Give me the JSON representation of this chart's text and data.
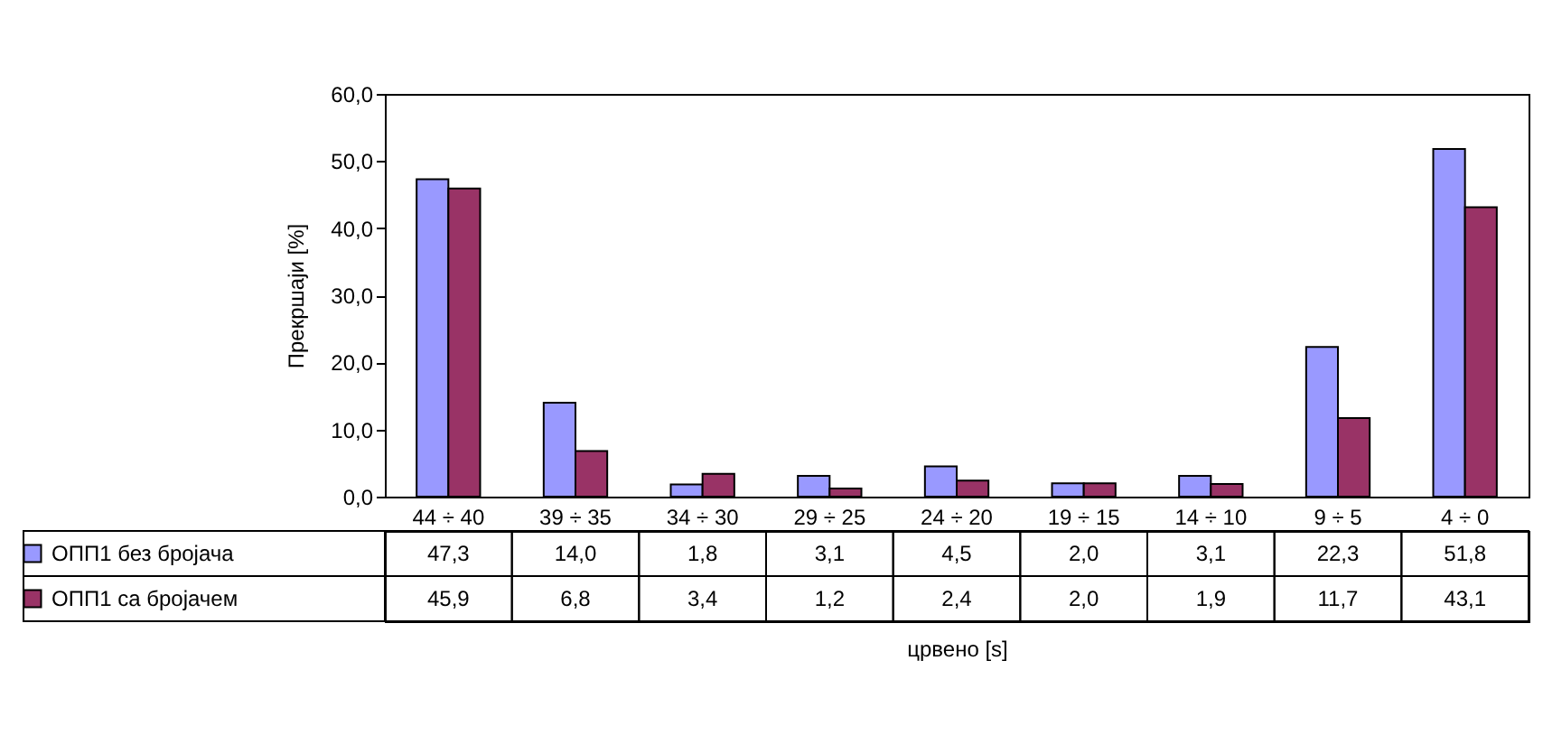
{
  "chart_data": {
    "type": "bar",
    "ylabel": "Прекршаји [%]",
    "xlabel": "црвено [s]",
    "categories": [
      "44 ÷ 40",
      "39 ÷ 35",
      "34 ÷ 30",
      "29 ÷ 25",
      "24 ÷ 20",
      "19 ÷ 15",
      "14 ÷ 10",
      "9 ÷ 5",
      "4 ÷ 0"
    ],
    "series": [
      {
        "name": "ОПП1 без бројача",
        "color": "#9999ff",
        "values": [
          47.3,
          14.0,
          1.8,
          3.1,
          4.5,
          2.0,
          3.1,
          22.3,
          51.8
        ],
        "value_labels": [
          "47,3",
          "14,0",
          "1,8",
          "3,1",
          "4,5",
          "2,0",
          "3,1",
          "22,3",
          "51,8"
        ]
      },
      {
        "name": "ОПП1 са бројачем",
        "color": "#993366",
        "values": [
          45.9,
          6.8,
          3.4,
          1.2,
          2.4,
          2.0,
          1.9,
          11.7,
          43.1
        ],
        "value_labels": [
          "45,9",
          "6,8",
          "3,4",
          "1,2",
          "2,4",
          "2,0",
          "1,9",
          "11,7",
          "43,1"
        ]
      }
    ],
    "ylim": [
      0,
      60
    ],
    "yticks": [
      {
        "value": 0,
        "label": "0,0"
      },
      {
        "value": 10,
        "label": "10,0"
      },
      {
        "value": 20,
        "label": "20,0"
      },
      {
        "value": 30,
        "label": "30,0"
      },
      {
        "value": 40,
        "label": "40,0"
      },
      {
        "value": 50,
        "label": "50,0"
      },
      {
        "value": 60,
        "label": "60,0"
      }
    ],
    "legend": "bottom left",
    "grid": false
  }
}
